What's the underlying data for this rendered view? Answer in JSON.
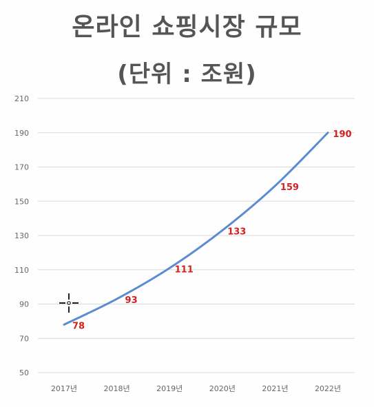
{
  "title": "온라인 쇼핑시장 규모",
  "subtitle": "(단위 : 조원)",
  "colors": {
    "line": "#5b8bd0",
    "data_label": "#d42020",
    "grid": "#d9d9d9",
    "title": "#555555"
  },
  "chart_data": {
    "type": "line",
    "title": "온라인 쇼핑시장 규모",
    "subtitle": "(단위 : 조원)",
    "xlabel": "",
    "ylabel": "",
    "categories": [
      "2017년",
      "2018년",
      "2019년",
      "2020년",
      "2021년",
      "2022년"
    ],
    "series": [
      {
        "values": [
          78,
          93,
          111,
          133,
          159,
          190
        ]
      }
    ],
    "ylim": [
      50,
      210
    ],
    "yticks": [
      50,
      70,
      90,
      110,
      130,
      150,
      170,
      190,
      210
    ],
    "grid": true,
    "legend": "none",
    "data_labels": [
      "78",
      "93",
      "111",
      "133",
      "159",
      "190"
    ]
  }
}
